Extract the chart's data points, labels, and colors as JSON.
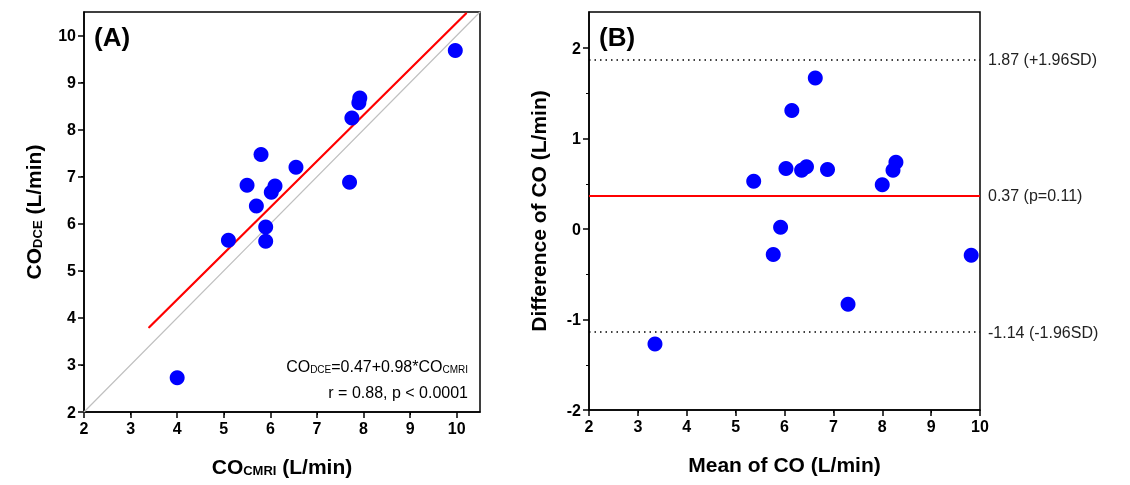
{
  "chart_data": [
    {
      "type": "scatter",
      "xlabel": "CO$_{CMRI}$ (L/min)",
      "ylabel": "CO$_{DCE}$ (L/min)",
      "xlim": [
        2,
        10.5
      ],
      "xticks": [
        2,
        3,
        4,
        5,
        6,
        7,
        8,
        9,
        10
      ],
      "ylim": [
        2,
        10.5
      ],
      "yticks": [
        2,
        3,
        4,
        5,
        6,
        7,
        8,
        9,
        10
      ],
      "annotations": [
        "(A)",
        "CO$_{DCE}$=0.47+0.98*CO$_{CMRI}$",
        "r = 0.88, p < 0.0001"
      ],
      "series": [
        {
          "type": "line",
          "color": "#c0c0c0",
          "marker": "none",
          "line_style": "solid",
          "x": [
            2,
            10.5
          ],
          "values": [
            2,
            10.5
          ]
        },
        {
          "type": "line",
          "color": "#ff0000",
          "marker": "none",
          "line_style": "solid",
          "x": [
            3.4,
            10.2
          ],
          "values": [
            3.8,
            10.47
          ]
        },
        {
          "type": "scatter",
          "color": "#0000ff",
          "marker": "circle",
          "x": [
            4.0,
            5.1,
            5.5,
            5.7,
            5.8,
            5.9,
            5.9,
            6.02,
            6.1,
            6.55,
            7.7,
            7.75,
            7.9,
            7.92,
            9.97
          ],
          "values": [
            2.73,
            5.65,
            6.82,
            6.38,
            7.47,
            5.93,
            5.63,
            6.67,
            6.8,
            7.2,
            6.88,
            8.25,
            8.57,
            8.67,
            9.68
          ]
        }
      ]
    },
    {
      "type": "scatter",
      "xlabel": "Mean of CO (L/min)",
      "ylabel": "Difference of CO (L/min)",
      "xlim": [
        2,
        10
      ],
      "xticks": [
        2,
        3,
        4,
        5,
        6,
        7,
        8,
        9,
        10
      ],
      "ylim": [
        -2,
        2.4
      ],
      "yticks": [
        -2,
        -1,
        0,
        1,
        2
      ],
      "annotations": [
        "(B)"
      ],
      "ref_lines": [
        {
          "axis": "y",
          "value": 1.87,
          "label": "1.87 (+1.96SD)",
          "color": "#000000",
          "line_style": "dotted"
        },
        {
          "axis": "y",
          "value": 0.37,
          "label": "0.37 (p=0.11)",
          "color": "#ff0000",
          "line_style": "solid"
        },
        {
          "axis": "y",
          "value": -1.14,
          "label": "-1.14 (-1.96SD)",
          "color": "#000000",
          "line_style": "dotted"
        }
      ],
      "series": [
        {
          "type": "scatter",
          "color": "#0000ff",
          "marker": "circle",
          "x": [
            3.35,
            5.37,
            5.77,
            5.92,
            6.03,
            6.15,
            6.35,
            6.45,
            6.63,
            6.88,
            7.3,
            8.0,
            8.22,
            8.28,
            9.82
          ],
          "values": [
            -1.27,
            0.53,
            -0.28,
            0.02,
            0.67,
            1.31,
            0.65,
            0.69,
            1.67,
            0.66,
            -0.83,
            0.49,
            0.65,
            0.74,
            -0.29
          ]
        }
      ]
    }
  ]
}
